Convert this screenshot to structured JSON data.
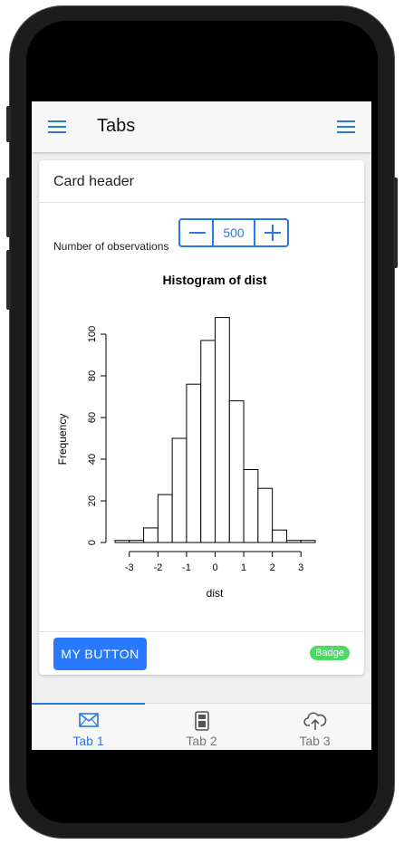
{
  "navbar": {
    "title": "Tabs"
  },
  "card": {
    "header": "Card header",
    "observations_label": "Number of observations",
    "observations_value": "500",
    "button_label": "MY BUTTON",
    "badge": "Badge"
  },
  "chart_data": {
    "type": "bar",
    "title": "Histogram of dist",
    "xlabel": "dist",
    "ylabel": "Frequency",
    "bin_edges": [
      -3.5,
      -3,
      -2.5,
      -2,
      -1.5,
      -1,
      -0.5,
      0,
      0.5,
      1,
      1.5,
      2,
      2.5,
      3,
      3.5
    ],
    "values": [
      1,
      1,
      7,
      23,
      50,
      76,
      97,
      108,
      68,
      35,
      26,
      6,
      1,
      1
    ],
    "xticks": [
      -3,
      -2,
      -1,
      0,
      1,
      2,
      3
    ],
    "xtick_labels": [
      "-3",
      "-2",
      "-1",
      "0",
      "1",
      "2",
      "3"
    ],
    "yticks": [
      0,
      20,
      40,
      60,
      80,
      100
    ],
    "ytick_labels": [
      "0",
      "20",
      "40",
      "60",
      "80",
      "100"
    ],
    "xlim": [
      -3.5,
      3.5
    ],
    "ylim": [
      0,
      100
    ],
    "grid": false
  },
  "tabs": [
    {
      "label": "Tab 1",
      "icon": "envelope-icon",
      "active": true
    },
    {
      "label": "Tab 2",
      "icon": "calculator-icon",
      "active": false
    },
    {
      "label": "Tab 3",
      "icon": "cloud-upload-icon",
      "active": false
    }
  ],
  "colors": {
    "accent": "#2979e0",
    "button": "#2979ff",
    "badge": "#4cd964",
    "inactive_tab": "#777777"
  }
}
